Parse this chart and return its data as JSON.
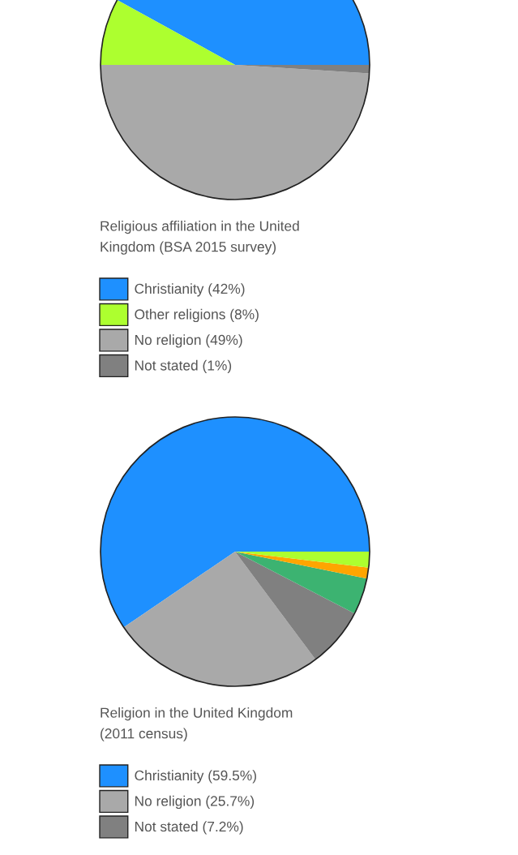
{
  "chart_data": [
    {
      "type": "pie",
      "title": "Religious affiliation in the United\nKingdom (BSA 2015 survey)",
      "legend": "bottom",
      "categories": [
        "Christianity",
        "Other religions",
        "No religion",
        "Not stated"
      ],
      "values": [
        42,
        8,
        49,
        1
      ],
      "value_labels": [
        "(42%)",
        "(8%)",
        "(49%)",
        "(1%)"
      ],
      "colors": [
        "#1e90ff",
        "#adff2f",
        "#a9a9a9",
        "#808080"
      ]
    },
    {
      "type": "pie",
      "title": "Religion in the United Kingdom\n(2011 census)",
      "legend": "bottom",
      "categories": [
        "Christianity",
        "No religion",
        "Not stated",
        null,
        null,
        null
      ],
      "values": [
        59.5,
        25.7,
        7.2,
        4.4,
        1.3,
        1.9
      ],
      "value_labels": [
        "(59.5%)",
        "(25.7%)",
        "(7.2%)",
        null,
        null,
        null
      ],
      "colors": [
        "#1e90ff",
        "#a9a9a9",
        "#808080",
        "#3cb371",
        "#ffa500",
        "#adff2f"
      ]
    }
  ]
}
